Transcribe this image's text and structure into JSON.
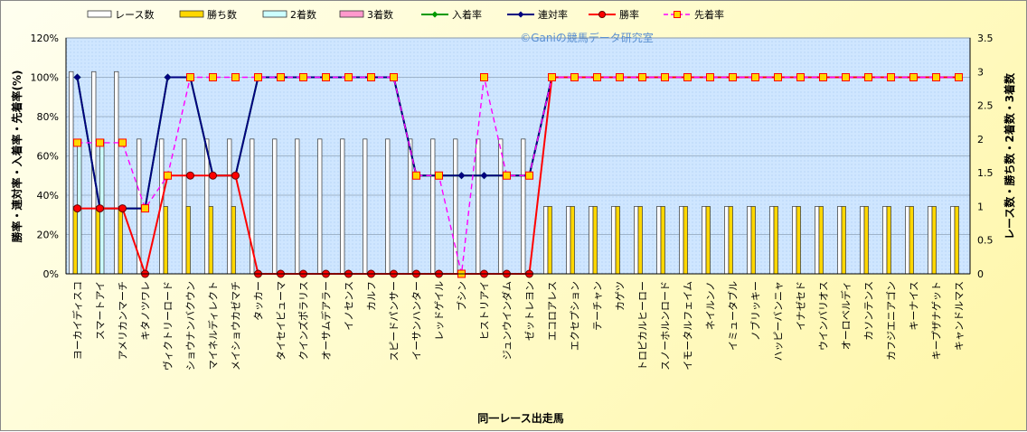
{
  "chart_data": {
    "type": "bar+line",
    "title": "",
    "watermark": "©Ganiの競馬データ研究室",
    "xlabel": "同一レース出走馬",
    "ylabel_left": "勝率・連対率・入着率・先着率(%)",
    "ylabel_right": "レース数・勝ち数・2着数・3着数",
    "ylim_left": [
      0,
      120
    ],
    "yticks_left": [
      "0%",
      "20%",
      "40%",
      "60%",
      "80%",
      "100%",
      "120%"
    ],
    "ylim_right": [
      0,
      3.5
    ],
    "yticks_right": [
      "0",
      "0.5",
      "1",
      "1.5",
      "2",
      "2.5",
      "3",
      "3.5"
    ],
    "grid": true,
    "legend_position": "top",
    "categories": [
      "ヨーカイディスコ",
      "スマートアイ",
      "アメリカンマーチ",
      "キタノツワレ",
      "ヴィクトリーロード",
      "ショウナンバクウン",
      "マイネルディレクト",
      "メイショウカゼマチ",
      "タッカー",
      "タイセイビューマ",
      "クインズポラリス",
      "オーサムデアラー",
      "イノセンス",
      "カルフ",
      "スピードパンサー",
      "イーサンハンター",
      "レッドゲイル",
      "ブシン",
      "ヒストリアイ",
      "ジュンウインダム",
      "ゼットレヨン",
      "エコロアレス",
      "エクセプション",
      "テーチャン",
      "カゲツ",
      "トロピカルヒーロー",
      "スノーホルンロード",
      "イモータルフェイム",
      "ネイルンノ",
      "イミュータブル",
      "ノブリッキー",
      "ハッピーバンニャ",
      "イナゼセド",
      "ウインバリオス",
      "オーロベルディ",
      "カソンテンス",
      "カフジエニアゴン",
      "キーナイス",
      "キープザナゲット",
      "キャンドルマス"
    ],
    "series": [
      {
        "name": "レース数",
        "axis": "right",
        "kind": "bar",
        "color": "#ffffff",
        "values": [
          3,
          3,
          3,
          2,
          2,
          2,
          2,
          2,
          2,
          2,
          2,
          2,
          2,
          2,
          2,
          2,
          2,
          2,
          2,
          2,
          2,
          1,
          1,
          1,
          1,
          1,
          1,
          1,
          1,
          1,
          1,
          1,
          1,
          1,
          1,
          1,
          1,
          1,
          1,
          1
        ]
      },
      {
        "name": "勝ち数",
        "axis": "right",
        "kind": "bar",
        "color": "#ffd700",
        "values": [
          1,
          1,
          1,
          0,
          1,
          1,
          1,
          1,
          0,
          0,
          0,
          0,
          0,
          0,
          0,
          0,
          0,
          0,
          0,
          0,
          0,
          1,
          1,
          1,
          1,
          1,
          1,
          1,
          1,
          1,
          1,
          1,
          1,
          1,
          1,
          1,
          1,
          1,
          1,
          1
        ]
      },
      {
        "name": "2着数",
        "axis": "right",
        "kind": "bar",
        "color": "#ccffff",
        "values": [
          2,
          2,
          0,
          0,
          0,
          0,
          0,
          0,
          0,
          0,
          0,
          0,
          0,
          0,
          0,
          0,
          0,
          0,
          0,
          0,
          0,
          0,
          0,
          0,
          0,
          0,
          0,
          0,
          0,
          0,
          0,
          0,
          0,
          0,
          0,
          0,
          0,
          0,
          0,
          0
        ]
      },
      {
        "name": "3着数",
        "axis": "right",
        "kind": "bar",
        "color": "#ff99cc",
        "values": [
          0,
          0,
          0,
          0,
          0,
          0,
          0,
          0,
          0,
          0,
          0,
          0,
          0,
          0,
          0,
          0,
          0,
          0,
          0,
          0,
          0,
          0,
          0,
          0,
          0,
          0,
          0,
          0,
          0,
          0,
          0,
          0,
          0,
          0,
          0,
          0,
          0,
          0,
          0,
          0
        ]
      },
      {
        "name": "入着率",
        "axis": "left",
        "kind": "line",
        "color": "#009900",
        "marker": "diamond",
        "values": [
          100,
          33.3,
          33.3,
          33.3,
          100,
          100,
          50,
          50,
          100,
          100,
          100,
          100,
          100,
          100,
          100,
          50,
          50,
          50,
          50,
          50,
          50,
          100,
          100,
          100,
          100,
          100,
          100,
          100,
          100,
          100,
          100,
          100,
          100,
          100,
          100,
          100,
          100,
          100,
          100,
          100
        ]
      },
      {
        "name": "連対率",
        "axis": "left",
        "kind": "line",
        "color": "#000080",
        "marker": "diamond",
        "values": [
          100,
          33.3,
          33.3,
          33.3,
          100,
          100,
          50,
          50,
          100,
          100,
          100,
          100,
          100,
          100,
          100,
          50,
          50,
          50,
          50,
          50,
          50,
          100,
          100,
          100,
          100,
          100,
          100,
          100,
          100,
          100,
          100,
          100,
          100,
          100,
          100,
          100,
          100,
          100,
          100,
          100
        ]
      },
      {
        "name": "勝率",
        "axis": "left",
        "kind": "line",
        "color": "#ff0000",
        "marker": "circle",
        "values": [
          33.3,
          33.3,
          33.3,
          0,
          50,
          50,
          50,
          50,
          0,
          0,
          0,
          0,
          0,
          0,
          0,
          0,
          0,
          0,
          0,
          0,
          0,
          100,
          100,
          100,
          100,
          100,
          100,
          100,
          100,
          100,
          100,
          100,
          100,
          100,
          100,
          100,
          100,
          100,
          100,
          100
        ]
      },
      {
        "name": "先着率",
        "axis": "left",
        "kind": "line",
        "color": "#ff00ff",
        "marker": "square",
        "dashed": true,
        "values": [
          66.7,
          66.7,
          66.7,
          33.3,
          50,
          100,
          100,
          100,
          100,
          100,
          100,
          100,
          100,
          100,
          100,
          50,
          50,
          0,
          100,
          50,
          50,
          100,
          100,
          100,
          100,
          100,
          100,
          100,
          100,
          100,
          100,
          100,
          100,
          100,
          100,
          100,
          100,
          100,
          100,
          100
        ]
      }
    ]
  }
}
